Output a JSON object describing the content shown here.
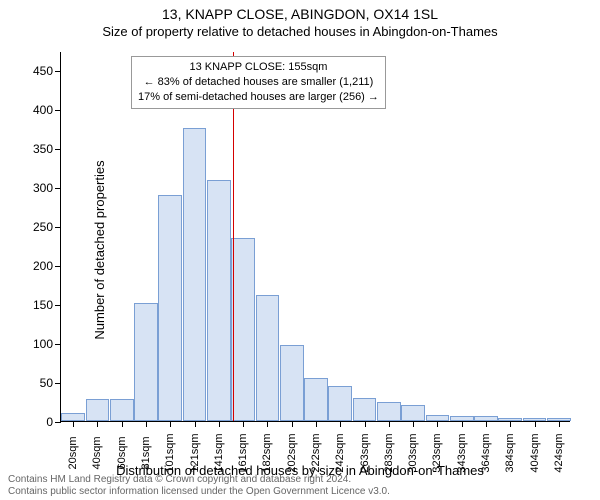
{
  "title": "13, KNAPP CLOSE, ABINGDON, OX14 1SL",
  "subtitle": "Size of property relative to detached houses in Abingdon-on-Thames",
  "chart": {
    "type": "bar",
    "ylabel": "Number of detached properties",
    "xlabel": "Distribution of detached houses by size in Abingdon-on-Thames",
    "ylim": [
      0,
      475
    ],
    "ytick_step": 50,
    "bar_fill": "#d7e3f4",
    "bar_stroke": "#7a9fd4",
    "bar_stroke_width": 1,
    "background": "#ffffff",
    "axis_color": "#000000",
    "tick_label_fontsize": 11,
    "label_fontsize": 13,
    "categories": [
      "20sqm",
      "40sqm",
      "60sqm",
      "81sqm",
      "101sqm",
      "121sqm",
      "141sqm",
      "161sqm",
      "182sqm",
      "202sqm",
      "222sqm",
      "242sqm",
      "263sqm",
      "283sqm",
      "303sqm",
      "323sqm",
      "343sqm",
      "364sqm",
      "384sqm",
      "404sqm",
      "424sqm"
    ],
    "values": [
      10,
      28,
      28,
      152,
      290,
      376,
      310,
      235,
      162,
      98,
      55,
      45,
      30,
      25,
      20,
      8,
      6,
      6,
      4,
      4,
      4
    ],
    "ref_line": {
      "index": 7,
      "color": "#d40000",
      "width": 1
    },
    "annotation": {
      "line1": "13 KNAPP CLOSE: 155sqm",
      "line2": "← 83% of detached houses are smaller (1,211)",
      "line3": "17% of semi-detached houses are larger (256) →",
      "border_color": "#999999",
      "fontsize": 11
    }
  },
  "footer": {
    "line1": "Contains HM Land Registry data © Crown copyright and database right 2024.",
    "line2": "Contains public sector information licensed under the Open Government Licence v3.0."
  }
}
